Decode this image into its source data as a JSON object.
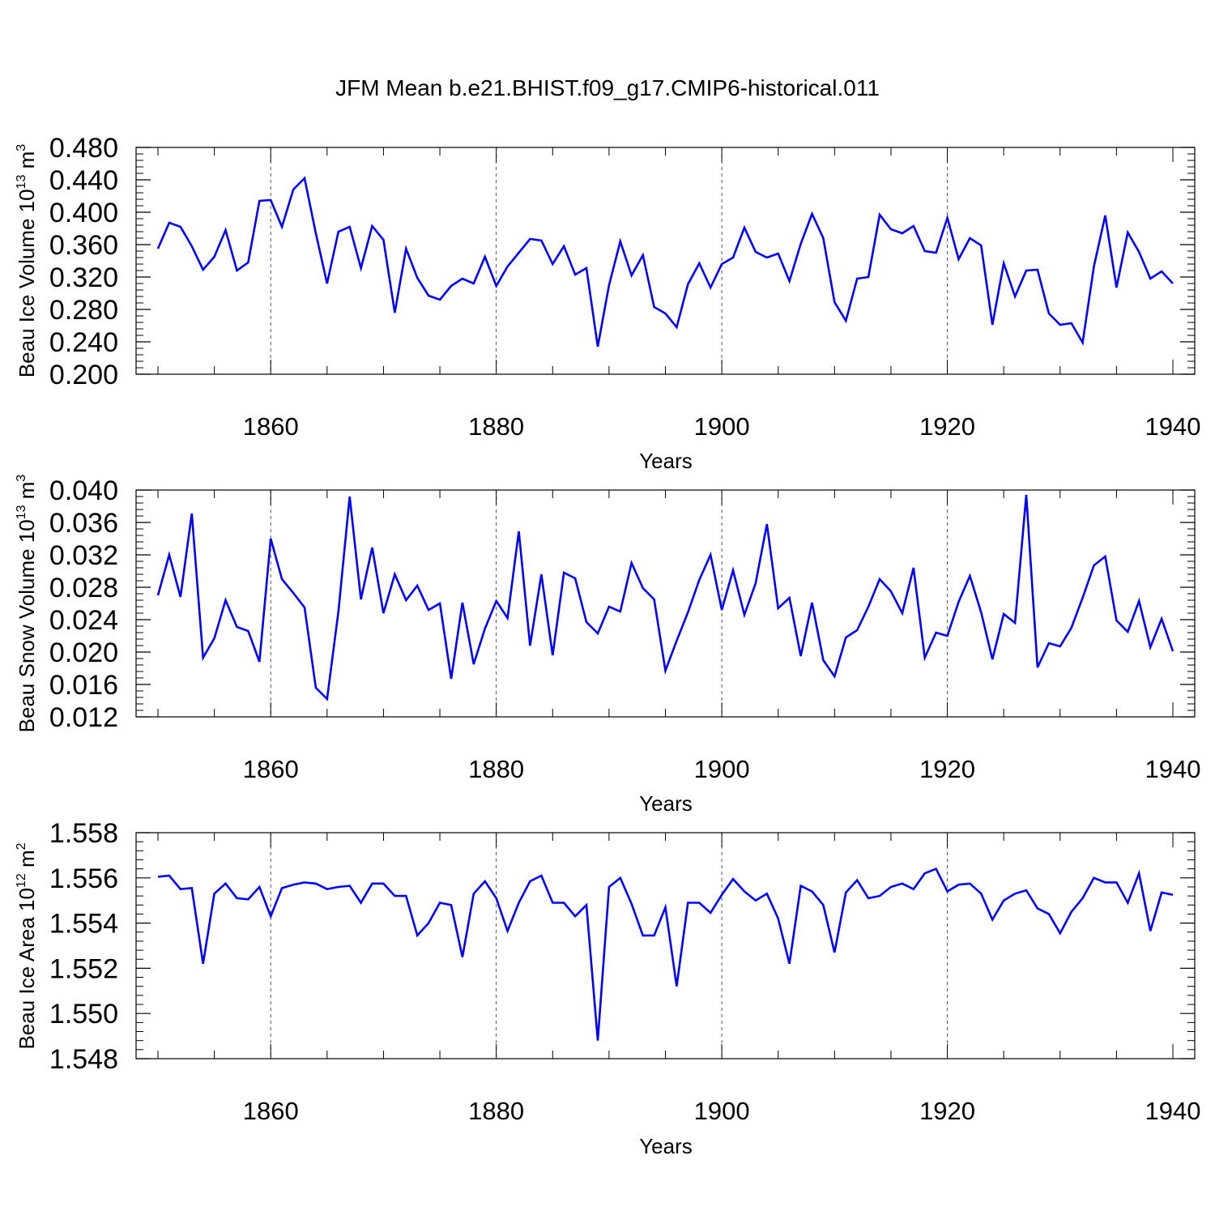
{
  "title": "JFM Mean b.e21.BHIST.f09_g17.CMIP6-historical.011",
  "colors": {
    "line": "#0000ff",
    "axis": "#000000",
    "grid": "#555555"
  },
  "chart_data": [
    {
      "type": "line",
      "name": "ice-volume",
      "ylabel_main": "Beau Ice Volume 10",
      "ylabel_exp": "13",
      "ylabel_unit": " m",
      "ylabel_unit_exp": "3",
      "xlabel": "Years",
      "xlim": [
        1850,
        1940
      ],
      "ylim": [
        0.2,
        0.48
      ],
      "yticks": [
        "0.200",
        "0.240",
        "0.280",
        "0.320",
        "0.360",
        "0.400",
        "0.440",
        "0.480"
      ],
      "yticks_values": [
        0.2,
        0.24,
        0.28,
        0.32,
        0.36,
        0.4,
        0.44,
        0.48
      ],
      "xticks": [
        "1860",
        "1880",
        "1900",
        "1920",
        "1940"
      ],
      "xticks_values": [
        1860,
        1880,
        1900,
        1920,
        1940
      ],
      "x_start": 1850,
      "values": [
        0.355,
        0.387,
        0.382,
        0.358,
        0.329,
        0.345,
        0.378,
        0.328,
        0.338,
        0.414,
        0.415,
        0.382,
        0.428,
        0.442,
        0.374,
        0.312,
        0.376,
        0.382,
        0.331,
        0.383,
        0.366,
        0.276,
        0.355,
        0.319,
        0.297,
        0.292,
        0.309,
        0.318,
        0.312,
        0.345,
        0.309,
        0.333,
        0.35,
        0.367,
        0.365,
        0.336,
        0.358,
        0.323,
        0.331,
        0.234,
        0.31,
        0.364,
        0.322,
        0.347,
        0.283,
        0.275,
        0.258,
        0.311,
        0.337,
        0.307,
        0.336,
        0.344,
        0.381,
        0.351,
        0.344,
        0.349,
        0.315,
        0.361,
        0.398,
        0.368,
        0.289,
        0.266,
        0.318,
        0.32,
        0.397,
        0.379,
        0.374,
        0.383,
        0.352,
        0.35,
        0.393,
        0.342,
        0.368,
        0.359,
        0.261,
        0.337,
        0.296,
        0.328,
        0.329,
        0.275,
        0.261,
        0.263,
        0.239,
        0.333,
        0.396,
        0.307,
        0.375,
        0.351,
        0.318,
        0.327,
        0.312
      ]
    },
    {
      "type": "line",
      "name": "snow-volume",
      "ylabel_main": "Beau Snow Volume 10",
      "ylabel_exp": "13",
      "ylabel_unit": " m",
      "ylabel_unit_exp": "3",
      "xlabel": "Years",
      "xlim": [
        1850,
        1940
      ],
      "ylim": [
        0.012,
        0.04
      ],
      "yticks": [
        "0.012",
        "0.016",
        "0.020",
        "0.024",
        "0.028",
        "0.032",
        "0.036",
        "0.040"
      ],
      "yticks_values": [
        0.012,
        0.016,
        0.02,
        0.024,
        0.028,
        0.032,
        0.036,
        0.04
      ],
      "xticks": [
        "1860",
        "1880",
        "1900",
        "1920",
        "1940"
      ],
      "xticks_values": [
        1860,
        1880,
        1900,
        1920,
        1940
      ],
      "x_start": 1850,
      "values": [
        0.027,
        0.032,
        0.0268,
        0.0371,
        0.0193,
        0.0217,
        0.0264,
        0.0231,
        0.0226,
        0.0188,
        0.034,
        0.029,
        0.0273,
        0.0255,
        0.0156,
        0.0142,
        0.025,
        0.0392,
        0.0265,
        0.0329,
        0.0248,
        0.0296,
        0.0264,
        0.0282,
        0.0252,
        0.026,
        0.0167,
        0.0261,
        0.0185,
        0.0229,
        0.0263,
        0.0242,
        0.0349,
        0.0208,
        0.0296,
        0.0196,
        0.0298,
        0.0291,
        0.0237,
        0.0223,
        0.0256,
        0.025,
        0.031,
        0.0279,
        0.0265,
        0.0177,
        0.0214,
        0.0249,
        0.0289,
        0.032,
        0.0252,
        0.0301,
        0.0246,
        0.0285,
        0.0358,
        0.0254,
        0.0267,
        0.0195,
        0.0261,
        0.019,
        0.017,
        0.0218,
        0.0227,
        0.0256,
        0.029,
        0.0275,
        0.0248,
        0.0304,
        0.0193,
        0.0224,
        0.022,
        0.0262,
        0.0294,
        0.0249,
        0.0191,
        0.0247,
        0.0236,
        0.0394,
        0.0181,
        0.0211,
        0.0207,
        0.023,
        0.0267,
        0.0307,
        0.0318,
        0.0239,
        0.0225,
        0.0263,
        0.0206,
        0.0241,
        0.0201
      ]
    },
    {
      "type": "line",
      "name": "ice-area",
      "ylabel_main": "Beau Ice Area 10",
      "ylabel_exp": "12",
      "ylabel_unit": " m",
      "ylabel_unit_exp": "2",
      "xlabel": "Years",
      "xlim": [
        1850,
        1940
      ],
      "ylim": [
        1.548,
        1.558
      ],
      "yticks": [
        "1.548",
        "1.550",
        "1.552",
        "1.554",
        "1.556",
        "1.558"
      ],
      "yticks_values": [
        1.548,
        1.55,
        1.552,
        1.554,
        1.556,
        1.558
      ],
      "xticks": [
        "1860",
        "1880",
        "1900",
        "1920",
        "1940"
      ],
      "xticks_values": [
        1860,
        1880,
        1900,
        1920,
        1940
      ],
      "x_start": 1850,
      "values": [
        1.55605,
        1.5561,
        1.5555,
        1.55555,
        1.5522,
        1.5553,
        1.55575,
        1.5551,
        1.55505,
        1.5556,
        1.5543,
        1.55555,
        1.5557,
        1.5558,
        1.55575,
        1.5555,
        1.5556,
        1.55565,
        1.5549,
        1.55575,
        1.55575,
        1.5552,
        1.5552,
        1.55345,
        1.554,
        1.5549,
        1.5548,
        1.5525,
        1.5553,
        1.55585,
        1.5551,
        1.55365,
        1.5549,
        1.55585,
        1.5561,
        1.5549,
        1.5549,
        1.5543,
        1.5548,
        1.5488,
        1.5556,
        1.556,
        1.55485,
        1.55345,
        1.55345,
        1.5547,
        1.5512,
        1.5549,
        1.5549,
        1.55445,
        1.55525,
        1.55595,
        1.5554,
        1.555,
        1.5553,
        1.5542,
        1.5522,
        1.55565,
        1.5554,
        1.5548,
        1.5527,
        1.55535,
        1.5559,
        1.5551,
        1.5552,
        1.5556,
        1.55575,
        1.5555,
        1.5562,
        1.5564,
        1.5554,
        1.5557,
        1.55575,
        1.5553,
        1.55415,
        1.555,
        1.5553,
        1.55545,
        1.55465,
        1.5544,
        1.55355,
        1.5545,
        1.5551,
        1.556,
        1.5558,
        1.5558,
        1.5549,
        1.5562,
        1.55365,
        1.55535,
        1.55525
      ]
    }
  ]
}
